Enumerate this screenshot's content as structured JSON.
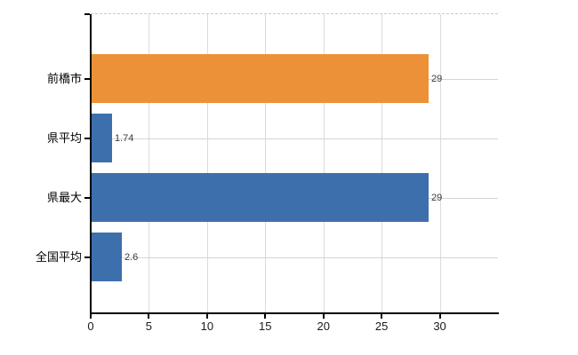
{
  "chart_data": {
    "type": "bar",
    "orientation": "horizontal",
    "title": "",
    "xlabel": "",
    "ylabel": "",
    "categories": [
      "前橋市",
      "県平均",
      "県最大",
      "全国平均"
    ],
    "values": [
      29,
      1.74,
      29,
      2.6
    ],
    "value_labels": [
      "29",
      "1.74",
      "29",
      "2.6"
    ],
    "series_colors": [
      "#EC9138",
      "#3E6FAD",
      "#3E6FAD",
      "#3E6FAD"
    ],
    "x_tick_labels": [
      "0",
      "5",
      "10",
      "15",
      "20",
      "25",
      "30"
    ],
    "x_tick_values": [
      0,
      5,
      10,
      15,
      20,
      25,
      30
    ],
    "xlim": [
      0,
      35
    ],
    "grid": {
      "vertical_gridlines": true,
      "horizontal_category_gridlines": true,
      "top_border_dashed": true
    },
    "legend": "none"
  },
  "colors": {
    "background": "#FFFFFF",
    "axis": "#000000",
    "vertical_gridline": "#DBDBDB",
    "horizontal_gridline": "#D2D6CE",
    "top_border": "#C9C9C9",
    "category_label_text": "#000000",
    "tick_label_text": "#1A1A1A",
    "value_label_text": "#3C3C3C",
    "bar_orange": "#EC9138",
    "bar_blue": "#3E6FAD"
  }
}
